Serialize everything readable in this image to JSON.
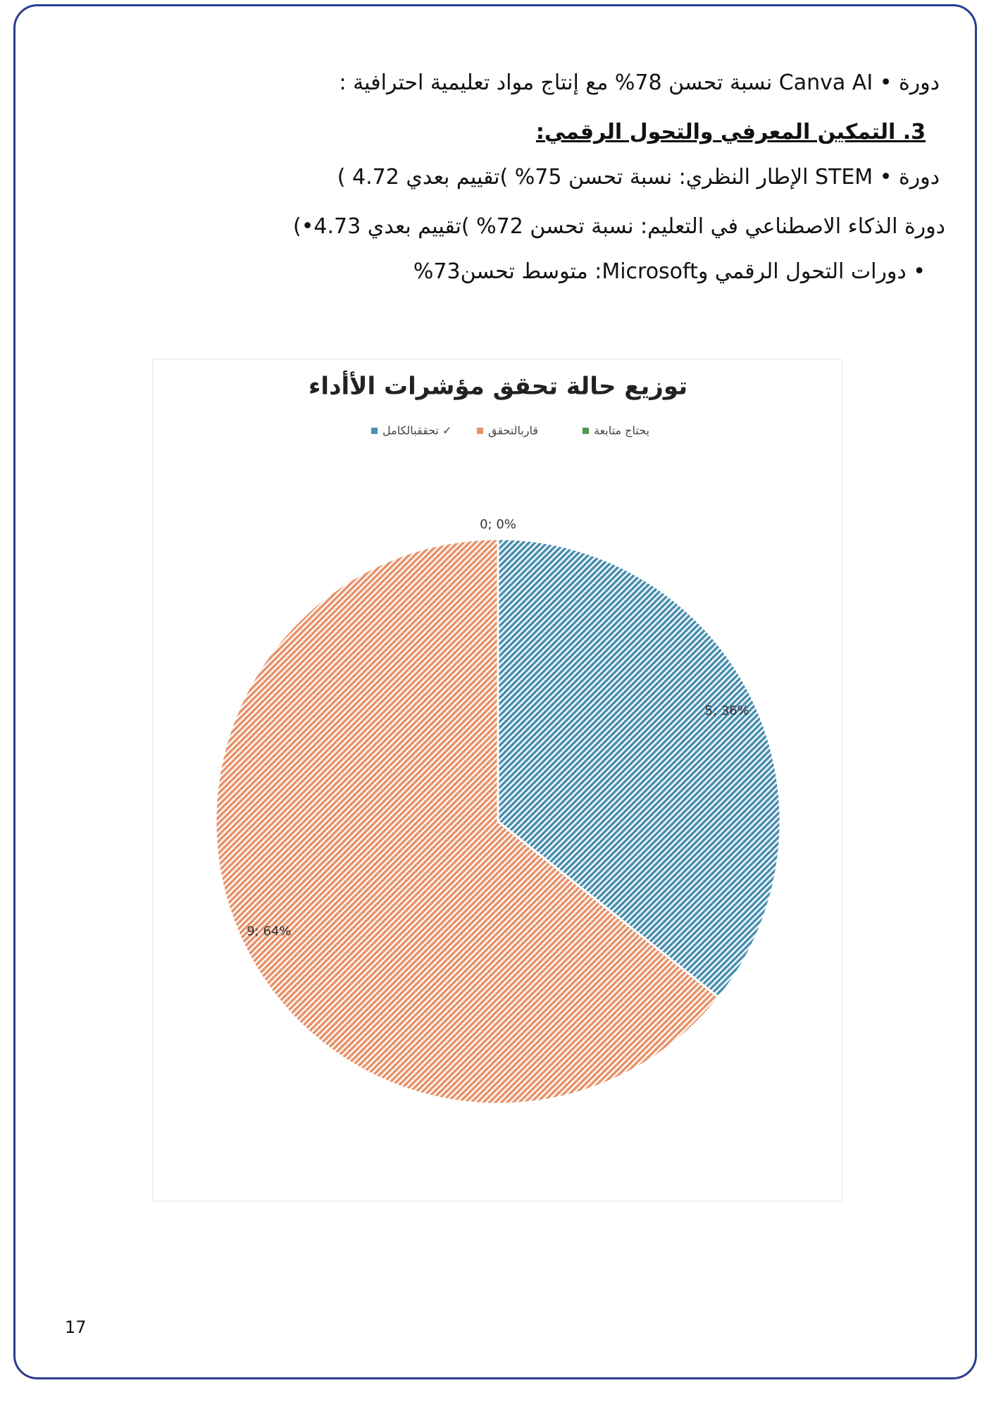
{
  "document": {
    "lines": [
      "دورة • Canva AI نسبة تحسن 78% مع إنتاج مواد تعليمية احترافية :",
      "3. التمكين المعرفي والتحول الرقمي:",
      "دورة • STEM الإطار النظري: نسبة تحسن 75% )تقييم بعدي 4.72 )",
      "دورة الذكاء الاصطناعي في التعليم: نسبة تحسن 72% )تقييم بعدي 4.73•)",
      "• دورات التحول الرقمي وMicrosoft: متوسط تحسن73%"
    ],
    "page_number": "17"
  },
  "chart_data": {
    "type": "pie",
    "title": "توزيع حالة تحقق مؤشرات الأأداء",
    "categories": [
      "تحققبالكامل ✓",
      "قاربالتحقق",
      "يحتاج متابعة"
    ],
    "values": [
      5,
      9,
      0
    ],
    "value_labels": [
      "5; 36%",
      "9; 64%",
      "0; 0%"
    ],
    "colors": [
      "#4a8fb0",
      "#e8926a",
      "#4f9a4f"
    ]
  }
}
